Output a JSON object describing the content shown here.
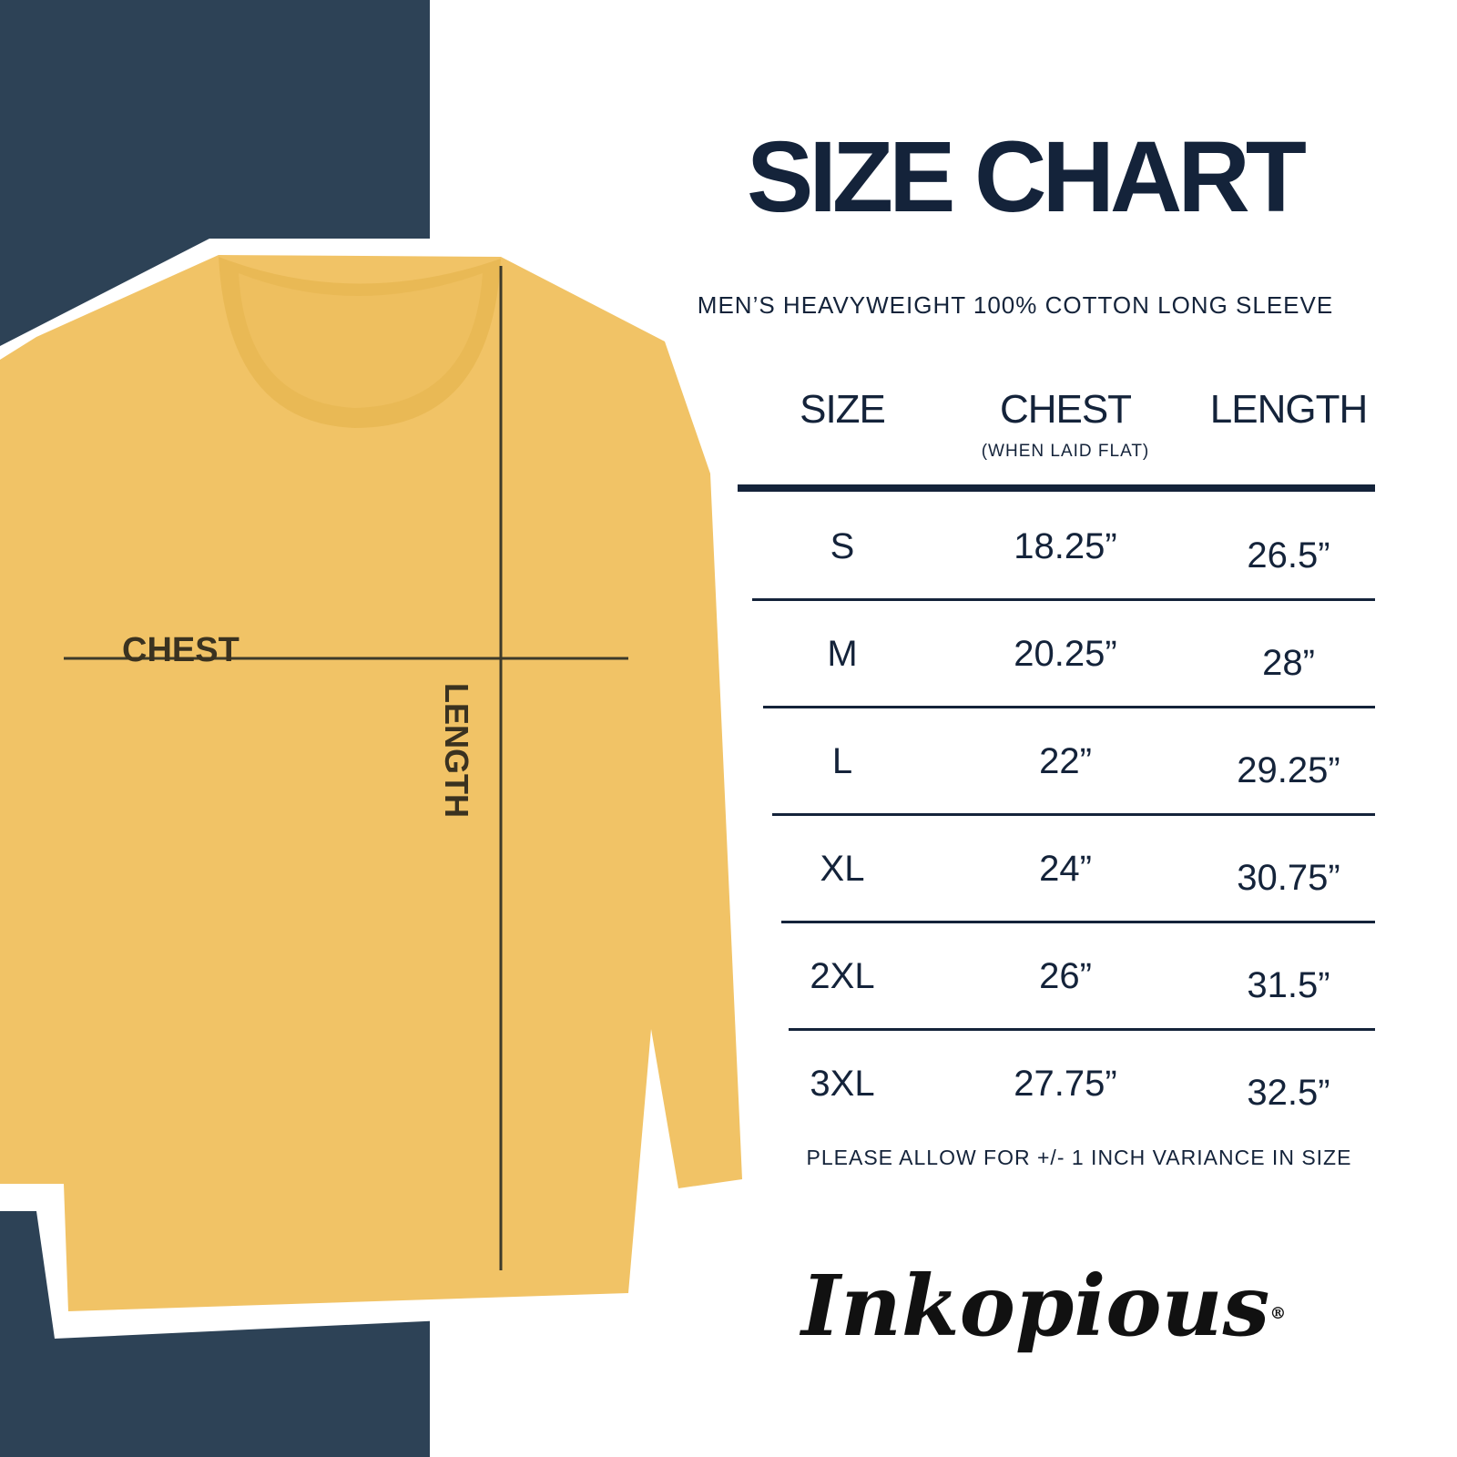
{
  "title": "SIZE CHART",
  "subtitle": "MEN’S HEAVYWEIGHT 100% COTTON LONG SLEEVE",
  "table": {
    "headers": {
      "size": "SIZE",
      "chest": "CHEST",
      "chest_note": "(WHEN LAID FLAT)",
      "length": "LENGTH"
    },
    "rows": [
      {
        "size": "S",
        "chest": "18.25”",
        "length": "26.5”"
      },
      {
        "size": "M",
        "chest": "20.25”",
        "length": "28”"
      },
      {
        "size": "L",
        "chest": "22”",
        "length": "29.25”"
      },
      {
        "size": "XL",
        "chest": "24”",
        "length": "30.75”"
      },
      {
        "size": "2XL",
        "chest": "26”",
        "length": "31.5”"
      },
      {
        "size": "3XL",
        "chest": "27.75”",
        "length": "32.5”"
      }
    ]
  },
  "note": "PLEASE ALLOW FOR +/- 1 INCH VARIANCE IN SIZE",
  "diagram": {
    "chest_label": "CHEST",
    "length_label": "LENGTH"
  },
  "logo": {
    "text": "Inkopious",
    "registered": "®"
  },
  "colors": {
    "navy_panel": "#2d4256",
    "text": "#14233a",
    "shirt": "#f1c366"
  }
}
